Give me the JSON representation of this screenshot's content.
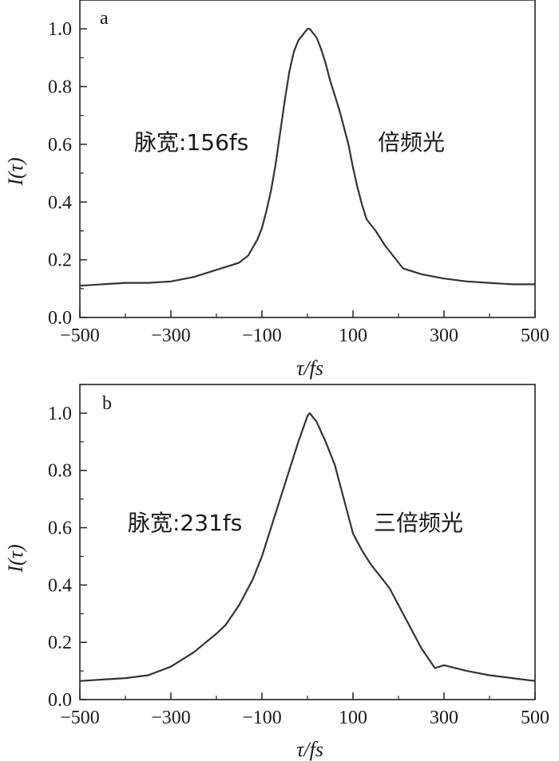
{
  "chart_data": [
    {
      "panel": "a",
      "type": "line",
      "xlabel": "τ/fs",
      "ylabel": "I(τ)",
      "xlim": [
        -500,
        500
      ],
      "ylim": [
        0.0,
        1.1
      ],
      "xticks": [
        "−500",
        "−300",
        "−100",
        "100",
        "300",
        "500"
      ],
      "yticks": [
        "0.0",
        "0.2",
        "0.4",
        "0.6",
        "0.8",
        "1.0"
      ],
      "annotations": {
        "width": "脉宽:156fs",
        "label": "倍频光"
      },
      "series": [
        {
          "x": [
            -500,
            -450,
            -400,
            -350,
            -300,
            -250,
            -200,
            -170,
            -150,
            -130,
            -110,
            -100,
            -90,
            -80,
            -70,
            -60,
            -50,
            -40,
            -30,
            -20,
            -10,
            0,
            5,
            10,
            20,
            30,
            40,
            50,
            60,
            70,
            80,
            90,
            100,
            110,
            120,
            130,
            150,
            170,
            190,
            210,
            250,
            300,
            350,
            400,
            450,
            500
          ],
          "y": [
            0.11,
            0.115,
            0.12,
            0.12,
            0.125,
            0.14,
            0.165,
            0.18,
            0.19,
            0.215,
            0.27,
            0.31,
            0.37,
            0.44,
            0.53,
            0.64,
            0.75,
            0.85,
            0.92,
            0.96,
            0.98,
            1.0,
            1.0,
            0.99,
            0.97,
            0.93,
            0.88,
            0.82,
            0.77,
            0.72,
            0.66,
            0.6,
            0.52,
            0.45,
            0.39,
            0.34,
            0.3,
            0.25,
            0.21,
            0.17,
            0.15,
            0.135,
            0.125,
            0.12,
            0.115,
            0.115
          ]
        }
      ]
    },
    {
      "panel": "b",
      "type": "line",
      "xlabel": "τ/fs",
      "ylabel": "I(τ)",
      "xlim": [
        -500,
        500
      ],
      "ylim": [
        0.0,
        1.1
      ],
      "xticks": [
        "−500",
        "−300",
        "−100",
        "100",
        "300",
        "500"
      ],
      "yticks": [
        "0.0",
        "0.2",
        "0.4",
        "0.6",
        "0.8",
        "1.0"
      ],
      "annotations": {
        "width": "脉宽:231fs",
        "label": "三倍频光"
      },
      "series": [
        {
          "x": [
            -500,
            -450,
            -400,
            -350,
            -300,
            -250,
            -200,
            -180,
            -150,
            -120,
            -100,
            -80,
            -60,
            -40,
            -20,
            0,
            5,
            20,
            40,
            60,
            80,
            100,
            120,
            140,
            160,
            180,
            200,
            220,
            250,
            280,
            300,
            350,
            400,
            450,
            500
          ],
          "y": [
            0.065,
            0.07,
            0.075,
            0.085,
            0.115,
            0.165,
            0.23,
            0.26,
            0.33,
            0.42,
            0.5,
            0.6,
            0.7,
            0.8,
            0.9,
            0.99,
            1.0,
            0.97,
            0.9,
            0.82,
            0.7,
            0.58,
            0.52,
            0.47,
            0.43,
            0.39,
            0.33,
            0.27,
            0.18,
            0.11,
            0.12,
            0.1,
            0.085,
            0.075,
            0.065
          ]
        }
      ]
    }
  ]
}
